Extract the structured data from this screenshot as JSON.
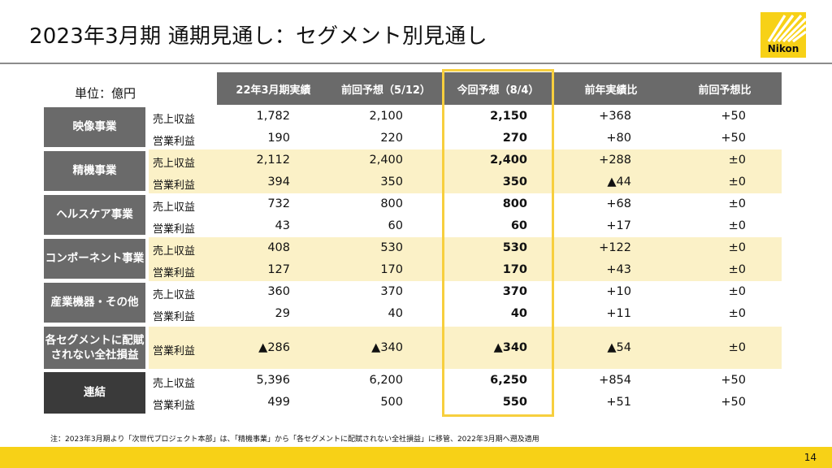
{
  "title": "2023年3月期 通期見通し：セグメント別見通し",
  "logo": {
    "wordmark": "Nikon"
  },
  "unit": "単位：億円",
  "columns": [
    "22年3月期実績",
    "前回予想（5/12）",
    "今回予想（8/4）",
    "前年実績比",
    "前回予想比"
  ],
  "segments": [
    {
      "name": "映像事業",
      "rows": [
        {
          "label": "売上収益",
          "values": [
            "1,782",
            "2,100",
            "2,150",
            "+368",
            "+50"
          ]
        },
        {
          "label": "営業利益",
          "values": [
            "190",
            "220",
            "270",
            "+80",
            "+50"
          ]
        }
      ]
    },
    {
      "name": "精機事業",
      "rows": [
        {
          "label": "売上収益",
          "values": [
            "2,112",
            "2,400",
            "2,400",
            "+288",
            "±0"
          ]
        },
        {
          "label": "営業利益",
          "values": [
            "394",
            "350",
            "350",
            "▲44",
            "±0"
          ]
        }
      ]
    },
    {
      "name": "ヘルスケア事業",
      "rows": [
        {
          "label": "売上収益",
          "values": [
            "732",
            "800",
            "800",
            "+68",
            "±0"
          ]
        },
        {
          "label": "営業利益",
          "values": [
            "43",
            "60",
            "60",
            "+17",
            "±0"
          ]
        }
      ]
    },
    {
      "name": "コンポーネント事業",
      "rows": [
        {
          "label": "売上収益",
          "values": [
            "408",
            "530",
            "530",
            "+122",
            "±0"
          ]
        },
        {
          "label": "営業利益",
          "values": [
            "127",
            "170",
            "170",
            "+43",
            "±0"
          ]
        }
      ]
    },
    {
      "name": "産業機器・その他",
      "rows": [
        {
          "label": "売上収益",
          "values": [
            "360",
            "370",
            "370",
            "+10",
            "±0"
          ]
        },
        {
          "label": "営業利益",
          "values": [
            "29",
            "40",
            "40",
            "+11",
            "±0"
          ]
        }
      ]
    },
    {
      "name": "各セグメントに配賦されない全社損益",
      "name_lines": [
        "各セグメントに配賦",
        "されない全社損益"
      ],
      "rows": [
        {
          "label": "営業利益",
          "values": [
            "▲286",
            "▲340",
            "▲340",
            "▲54",
            "±0"
          ]
        }
      ]
    },
    {
      "name": "連結",
      "rows": [
        {
          "label": "売上収益",
          "values": [
            "5,396",
            "6,200",
            "6,250",
            "+854",
            "+50"
          ]
        },
        {
          "label": "営業利益",
          "values": [
            "499",
            "500",
            "550",
            "+51",
            "+50"
          ]
        }
      ]
    }
  ],
  "note": "注：2023年3月期より「次世代プロジェクト本部」は、「精機事業」から「各セグメントに配賦されない全社損益」に移管、2022年3月期へ遡及適用",
  "page_number": "14",
  "colors": {
    "accent_yellow": "#f7d117",
    "header_gray": "#6a6a6a",
    "consolidated_dark": "#3a3a3a",
    "band_yellow": "#fbf1c7",
    "highlight_border": "#f7cf3e"
  }
}
